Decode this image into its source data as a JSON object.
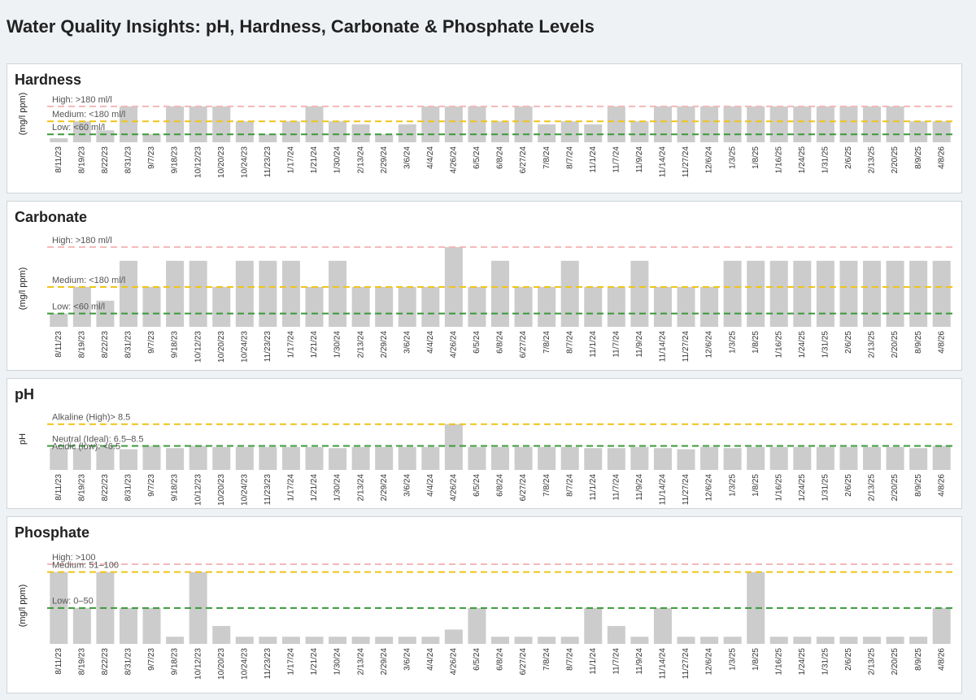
{
  "title": "Water Quality Insights: pH, Hardness, Carbonate & Phosphate Levels",
  "chart_data": [
    {
      "type": "bar",
      "title": "Hardness",
      "ylabel": "(mg/l  ppm)",
      "color": "#cccccc",
      "ylim": [
        0,
        200
      ],
      "categories": [
        "8/11/23",
        "8/19/23",
        "8/22/23",
        "8/31/23",
        "9/7/23",
        "9/18/23",
        "10/12/23",
        "10/20/23",
        "10/24/23",
        "11/23/23",
        "1/17/24",
        "1/21/24",
        "1/30/24",
        "2/13/24",
        "2/29/24",
        "3/6/24",
        "4/4/24",
        "4/26/24",
        "6/5/24",
        "6/8/24",
        "6/27/24",
        "7/8/24",
        "8/7/24",
        "11/1/24",
        "11/7/24",
        "11/9/24",
        "11/14/24",
        "11/27/24",
        "12/6/24",
        "1/3/25",
        "1/8/25",
        "1/16/25",
        "1/24/25",
        "1/31/25",
        "2/6/25",
        "2/13/25",
        "2/20/25",
        "8/9/25",
        "4/8/26"
      ],
      "values": [
        20,
        105,
        60,
        180,
        40,
        180,
        180,
        180,
        105,
        40,
        105,
        180,
        105,
        90,
        40,
        90,
        180,
        180,
        180,
        105,
        180,
        90,
        105,
        90,
        180,
        105,
        180,
        180,
        180,
        180,
        180,
        180,
        180,
        180,
        180,
        180,
        180,
        105,
        105
      ],
      "thresholds": [
        {
          "label": "High:  >180 ml/l",
          "value": 180,
          "color": "#f4b8b8"
        },
        {
          "label": "Medium: <180 ml/l",
          "value": 105,
          "color": "#f0c419"
        },
        {
          "label": "Low: <60 ml/l",
          "value": 40,
          "color": "#3a9a3a"
        }
      ]
    },
    {
      "type": "bar",
      "title": "Carbonate",
      "ylabel": "(mg/l  ppm)",
      "color": "#cccccc",
      "ylim": [
        0,
        200
      ],
      "categories": [
        "8/11/23",
        "8/19/23",
        "8/22/23",
        "8/31/23",
        "9/7/23",
        "9/18/23",
        "10/12/23",
        "10/20/23",
        "10/24/23",
        "11/23/23",
        "1/17/24",
        "1/21/24",
        "1/30/24",
        "2/13/24",
        "2/29/24",
        "3/6/24",
        "4/4/24",
        "4/26/24",
        "6/5/24",
        "6/8/24",
        "6/27/24",
        "7/8/24",
        "8/7/24",
        "11/1/24",
        "11/7/24",
        "11/9/24",
        "11/14/24",
        "11/27/24",
        "12/6/24",
        "1/3/25",
        "1/8/25",
        "1/16/25",
        "1/24/25",
        "1/31/25",
        "2/6/25",
        "2/13/25",
        "2/20/25",
        "8/9/25",
        "4/8/26"
      ],
      "values": [
        30,
        90,
        59,
        149,
        90,
        149,
        149,
        90,
        149,
        149,
        149,
        90,
        149,
        90,
        90,
        90,
        90,
        180,
        90,
        149,
        90,
        90,
        149,
        90,
        90,
        149,
        90,
        90,
        90,
        149,
        149,
        149,
        149,
        149,
        149,
        149,
        149,
        149,
        149
      ],
      "thresholds": [
        {
          "label": "High:  >180 ml/l",
          "value": 180,
          "color": "#f4b8b8"
        },
        {
          "label": "Medium: <180 ml/l",
          "value": 90,
          "color": "#f0c419"
        },
        {
          "label": "Low: <60 ml/l",
          "value": 30,
          "color": "#3a9a3a"
        }
      ]
    },
    {
      "type": "bar",
      "title": "pH",
      "ylabel": "pH",
      "color": "#cccccc",
      "ylim": [
        4.3,
        9
      ],
      "categories": [
        "8/11/23",
        "8/19/23",
        "8/22/23",
        "8/31/23",
        "9/7/23",
        "9/18/23",
        "10/12/23",
        "10/20/23",
        "10/24/23",
        "11/23/23",
        "1/17/24",
        "1/21/24",
        "1/30/24",
        "2/13/24",
        "2/29/24",
        "3/6/24",
        "4/4/24",
        "4/26/24",
        "6/5/24",
        "6/8/24",
        "6/27/24",
        "7/8/24",
        "8/7/24",
        "11/1/24",
        "11/7/24",
        "11/9/24",
        "11/14/24",
        "11/27/24",
        "12/6/24",
        "1/3/25",
        "1/8/25",
        "1/16/25",
        "1/24/25",
        "1/31/25",
        "2/6/25",
        "2/13/25",
        "2/20/25",
        "8/9/25",
        "4/8/26"
      ],
      "values": [
        6.3,
        6.3,
        6.4,
        6.2,
        6.5,
        6.3,
        6.5,
        6.4,
        6.4,
        6.4,
        6.4,
        6.4,
        6.3,
        6.4,
        6.4,
        6.4,
        6.4,
        8.5,
        6.4,
        6.4,
        6.4,
        6.4,
        6.4,
        6.3,
        6.3,
        6.4,
        6.3,
        6.2,
        6.4,
        6.3,
        6.4,
        6.4,
        6.4,
        6.4,
        6.4,
        6.4,
        6.4,
        6.3,
        6.5
      ],
      "thresholds": [
        {
          "label": "Alkaline (High)> 8.5",
          "value": 8.5,
          "color": "#f0c419"
        },
        {
          "label": "Neutral (Ideal): 6.5–8.5",
          "value": 6.5,
          "color": "#3a9a3a"
        },
        {
          "label": "Acidic (low): <6.5",
          "value": 6.5,
          "color": "#3a9a3a"
        }
      ]
    },
    {
      "type": "bar",
      "title": "Phosphate",
      "ylabel": "(mg/l  ppm)",
      "color": "#cccccc",
      "ylim": [
        0,
        120
      ],
      "categories": [
        "8/11/23",
        "8/19/23",
        "8/22/23",
        "8/31/23",
        "9/7/23",
        "9/18/23",
        "10/12/23",
        "10/20/23",
        "10/24/23",
        "11/23/23",
        "1/17/24",
        "1/21/24",
        "1/30/24",
        "2/13/24",
        "2/29/24",
        "3/6/24",
        "4/4/24",
        "4/26/24",
        "6/5/24",
        "6/8/24",
        "6/27/24",
        "7/8/24",
        "8/7/24",
        "11/1/24",
        "11/7/24",
        "11/9/24",
        "11/14/24",
        "11/27/24",
        "12/6/24",
        "1/3/25",
        "1/8/25",
        "1/16/25",
        "1/24/25",
        "1/31/25",
        "2/6/25",
        "2/13/25",
        "2/20/25",
        "8/9/25",
        "4/8/26"
      ],
      "values": [
        100,
        50,
        100,
        50,
        50,
        10,
        100,
        25,
        10,
        10,
        10,
        10,
        10,
        10,
        10,
        10,
        10,
        20,
        50,
        10,
        10,
        10,
        10,
        50,
        25,
        10,
        50,
        10,
        10,
        10,
        100,
        10,
        10,
        10,
        10,
        10,
        10,
        10,
        50
      ],
      "thresholds": [
        {
          "label": "High: >100",
          "value": 111,
          "color": "#f4b8b8"
        },
        {
          "label": "Medium: 51–100",
          "value": 100,
          "color": "#f0c419"
        },
        {
          "label": "Low: 0–50",
          "value": 50,
          "color": "#3a9a3a"
        }
      ]
    }
  ]
}
